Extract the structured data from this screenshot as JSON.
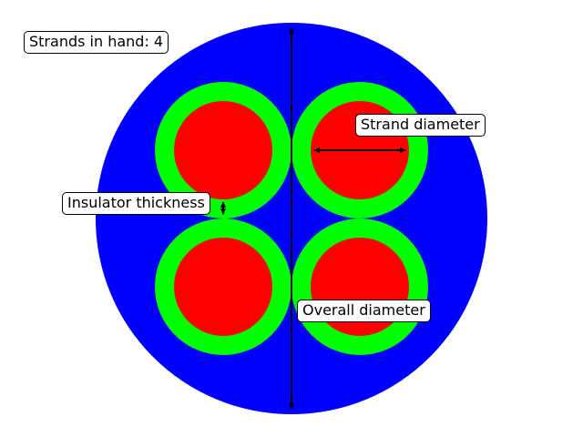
{
  "labels": {
    "strands_in_hand": "Strands in hand: 4",
    "strand_diameter": "Strand diameter",
    "insulator_thickness": "Insulator thickness",
    "overall_diameter": "Overall diameter"
  },
  "colors": {
    "outer_insulation": "#0000ff",
    "strand_insulation": "#00ff00",
    "conductor": "#ff0000",
    "dimension_arrows": "#000000"
  },
  "strand_count": 4
}
